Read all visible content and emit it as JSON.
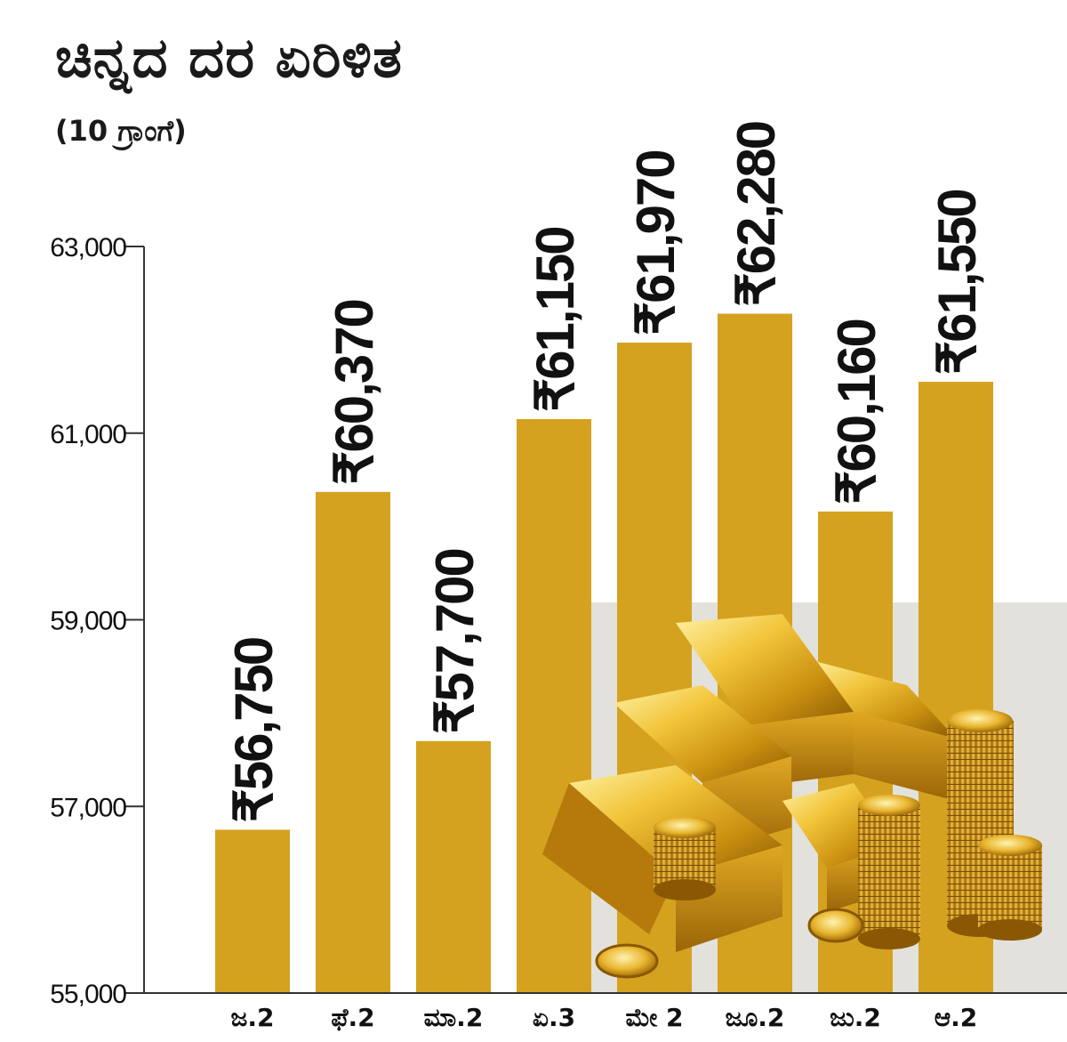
{
  "chart_data": {
    "type": "bar",
    "title": "ಚಿನ್ನದ ದರ ಏರಿಳಿತ",
    "subtitle": "(10 ಗ್ರಾಂಗೆ)",
    "categories": [
      "ಜ.2",
      "ಫೆ.2",
      "ಮಾ.2",
      "ಏ.3",
      "ಮೇ 2",
      "ಜೂ.2",
      "ಜು.2",
      "ಆ.2"
    ],
    "values": [
      56750,
      60370,
      57700,
      61150,
      61970,
      62280,
      60160,
      61550
    ],
    "value_labels": [
      "₹56,750",
      "₹60,370",
      "₹57,700",
      "₹61,150",
      "₹61,970",
      "₹62,280",
      "₹60,160",
      "₹61,550"
    ],
    "ylim": [
      55000,
      63000
    ],
    "yticks": [
      55000,
      57000,
      59000,
      61000,
      63000
    ],
    "ytick_labels": [
      "55,000",
      "57,000",
      "59,000",
      "61,000",
      "63,000"
    ],
    "grid": false,
    "bar_color": "#d4a21e",
    "image": "gold-bars-and-coins"
  }
}
